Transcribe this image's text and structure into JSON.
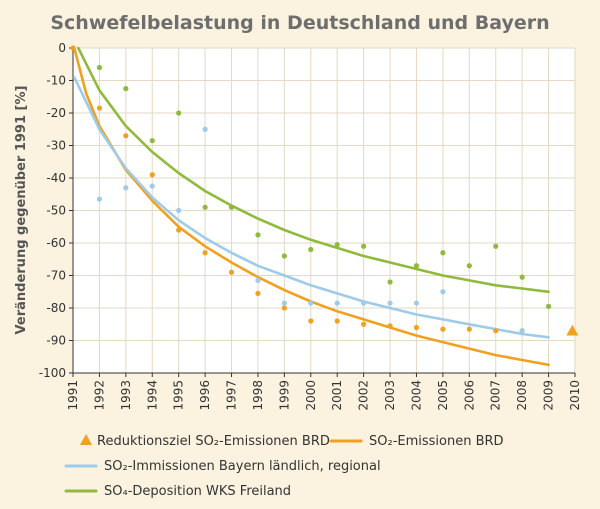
{
  "chart_data": {
    "type": "scatter",
    "title": "Schwefelbelastung in Deutschland und Bayern",
    "ylabel": "Veränderung gegenüber 1991 [%]",
    "xlabel": "",
    "xlim": [
      1991,
      2010
    ],
    "ylim": [
      -100,
      0
    ],
    "grid": true,
    "legend_position": "bottom",
    "x_ticks": [
      "1991",
      "1992",
      "1993",
      "1994",
      "1995",
      "1996",
      "1997",
      "1998",
      "1999",
      "2000",
      "2001",
      "2002",
      "2003",
      "2004",
      "2005",
      "2006",
      "2007",
      "2008",
      "2009",
      "2010"
    ],
    "y_ticks": [
      "0",
      "-10",
      "-20",
      "-30",
      "-40",
      "-50",
      "-60",
      "-70",
      "-80",
      "-90",
      "-100"
    ],
    "series": [
      {
        "name": "Reduktionsziel SO₂-Emissionen BRD",
        "marker": "triangle",
        "color": "#f0a11d",
        "points": [
          [
            2009.9,
            -87
          ]
        ]
      },
      {
        "name": "SO₂-Emissionen BRD",
        "marker": "dot",
        "color": "#f0a11d",
        "points": [
          [
            1991,
            0
          ],
          [
            1992,
            -18.5
          ],
          [
            1993,
            -27
          ],
          [
            1994,
            -39
          ],
          [
            1995,
            -56
          ],
          [
            1996,
            -63
          ],
          [
            1997,
            -69
          ],
          [
            1998,
            -75.5
          ],
          [
            1999,
            -80
          ],
          [
            2000,
            -84
          ],
          [
            2001,
            -84
          ],
          [
            2002,
            -85
          ],
          [
            2003,
            -85.5
          ],
          [
            2004,
            -86
          ],
          [
            2005,
            -86.5
          ],
          [
            2006,
            -86.5
          ],
          [
            2007,
            -87
          ],
          [
            2008,
            -87
          ]
        ],
        "trend": [
          [
            1991.05,
            0
          ],
          [
            1991.5,
            -14
          ],
          [
            1992,
            -24
          ],
          [
            1993,
            -37.5
          ],
          [
            1994,
            -47
          ],
          [
            1995,
            -55
          ],
          [
            1996,
            -61
          ],
          [
            1997,
            -66
          ],
          [
            1998,
            -70.5
          ],
          [
            1999,
            -74.5
          ],
          [
            2000,
            -78
          ],
          [
            2001,
            -81
          ],
          [
            2002,
            -83.5
          ],
          [
            2003,
            -86
          ],
          [
            2004,
            -88.5
          ],
          [
            2005,
            -90.5
          ],
          [
            2006,
            -92.5
          ],
          [
            2007,
            -94.5
          ],
          [
            2008,
            -96
          ],
          [
            2009,
            -97.5
          ]
        ]
      },
      {
        "name": "SO₂-Immissionen Bayern ländlich, regional",
        "marker": "dot",
        "color": "#9ecbe8",
        "points": [
          [
            1992,
            -46.5
          ],
          [
            1993,
            -43
          ],
          [
            1994,
            -42.5
          ],
          [
            1995,
            -50
          ],
          [
            1996,
            -25
          ],
          [
            1998,
            -71.5
          ],
          [
            1999,
            -78.5
          ],
          [
            2000,
            -78.5
          ],
          [
            2001,
            -78.5
          ],
          [
            2002,
            -78.5
          ],
          [
            2003,
            -78.5
          ],
          [
            2004,
            -78.5
          ],
          [
            2005,
            -75
          ],
          [
            2008,
            -87
          ]
        ],
        "trend": [
          [
            1991.05,
            -9
          ],
          [
            1992,
            -25
          ],
          [
            1993,
            -37
          ],
          [
            1994,
            -46
          ],
          [
            1995,
            -53
          ],
          [
            1996,
            -58.5
          ],
          [
            1997,
            -63
          ],
          [
            1998,
            -67
          ],
          [
            1999,
            -70
          ],
          [
            2000,
            -73
          ],
          [
            2001,
            -75.5
          ],
          [
            2002,
            -78
          ],
          [
            2003,
            -80
          ],
          [
            2004,
            -82
          ],
          [
            2005,
            -83.5
          ],
          [
            2006,
            -85
          ],
          [
            2007,
            -86.5
          ],
          [
            2008,
            -88
          ],
          [
            2009,
            -89
          ]
        ]
      },
      {
        "name": "SO₄-Deposition WKS Freiland",
        "marker": "dot",
        "color": "#8fba3c",
        "points": [
          [
            1992,
            -6
          ],
          [
            1993,
            -12.5
          ],
          [
            1994,
            -28.5
          ],
          [
            1995,
            -20
          ],
          [
            1996,
            -49
          ],
          [
            1997,
            -49
          ],
          [
            1998,
            -57.5
          ],
          [
            1999,
            -64
          ],
          [
            2000,
            -62
          ],
          [
            2001,
            -60.5
          ],
          [
            2002,
            -61
          ],
          [
            2003,
            -72
          ],
          [
            2004,
            -67
          ],
          [
            2005,
            -63
          ],
          [
            2006,
            -67
          ],
          [
            2007,
            -61
          ],
          [
            2008,
            -70.5
          ],
          [
            2009,
            -79.5
          ]
        ],
        "trend": [
          [
            1991.2,
            0
          ],
          [
            1992,
            -13
          ],
          [
            1993,
            -24
          ],
          [
            1994,
            -32
          ],
          [
            1995,
            -38.5
          ],
          [
            1996,
            -44
          ],
          [
            1997,
            -48.5
          ],
          [
            1998,
            -52.5
          ],
          [
            1999,
            -56
          ],
          [
            2000,
            -59
          ],
          [
            2001,
            -61.5
          ],
          [
            2002,
            -64
          ],
          [
            2003,
            -66
          ],
          [
            2004,
            -68
          ],
          [
            2005,
            -70
          ],
          [
            2006,
            -71.5
          ],
          [
            2007,
            -73
          ],
          [
            2008,
            -74
          ],
          [
            2009,
            -75
          ]
        ]
      }
    ]
  },
  "legend": {
    "items": [
      {
        "label": "Reduktionsziel SO₂-Emissionen BRD",
        "symbol": "triangle",
        "color": "#f0a11d"
      },
      {
        "label": "SO₂-Emissionen BRD",
        "symbol": "line",
        "color": "#f0a11d"
      },
      {
        "label": "SO₂-Immissionen Bayern ländlich, regional",
        "symbol": "line",
        "color": "#9ecbe8"
      },
      {
        "label": "SO₄-Deposition WKS Freiland",
        "symbol": "line",
        "color": "#8fba3c"
      }
    ]
  },
  "colors": {
    "background": "#fbf3df",
    "plot_background": "#ffffff",
    "grid": "#e3d9c4",
    "title": "#6e6e6e"
  }
}
